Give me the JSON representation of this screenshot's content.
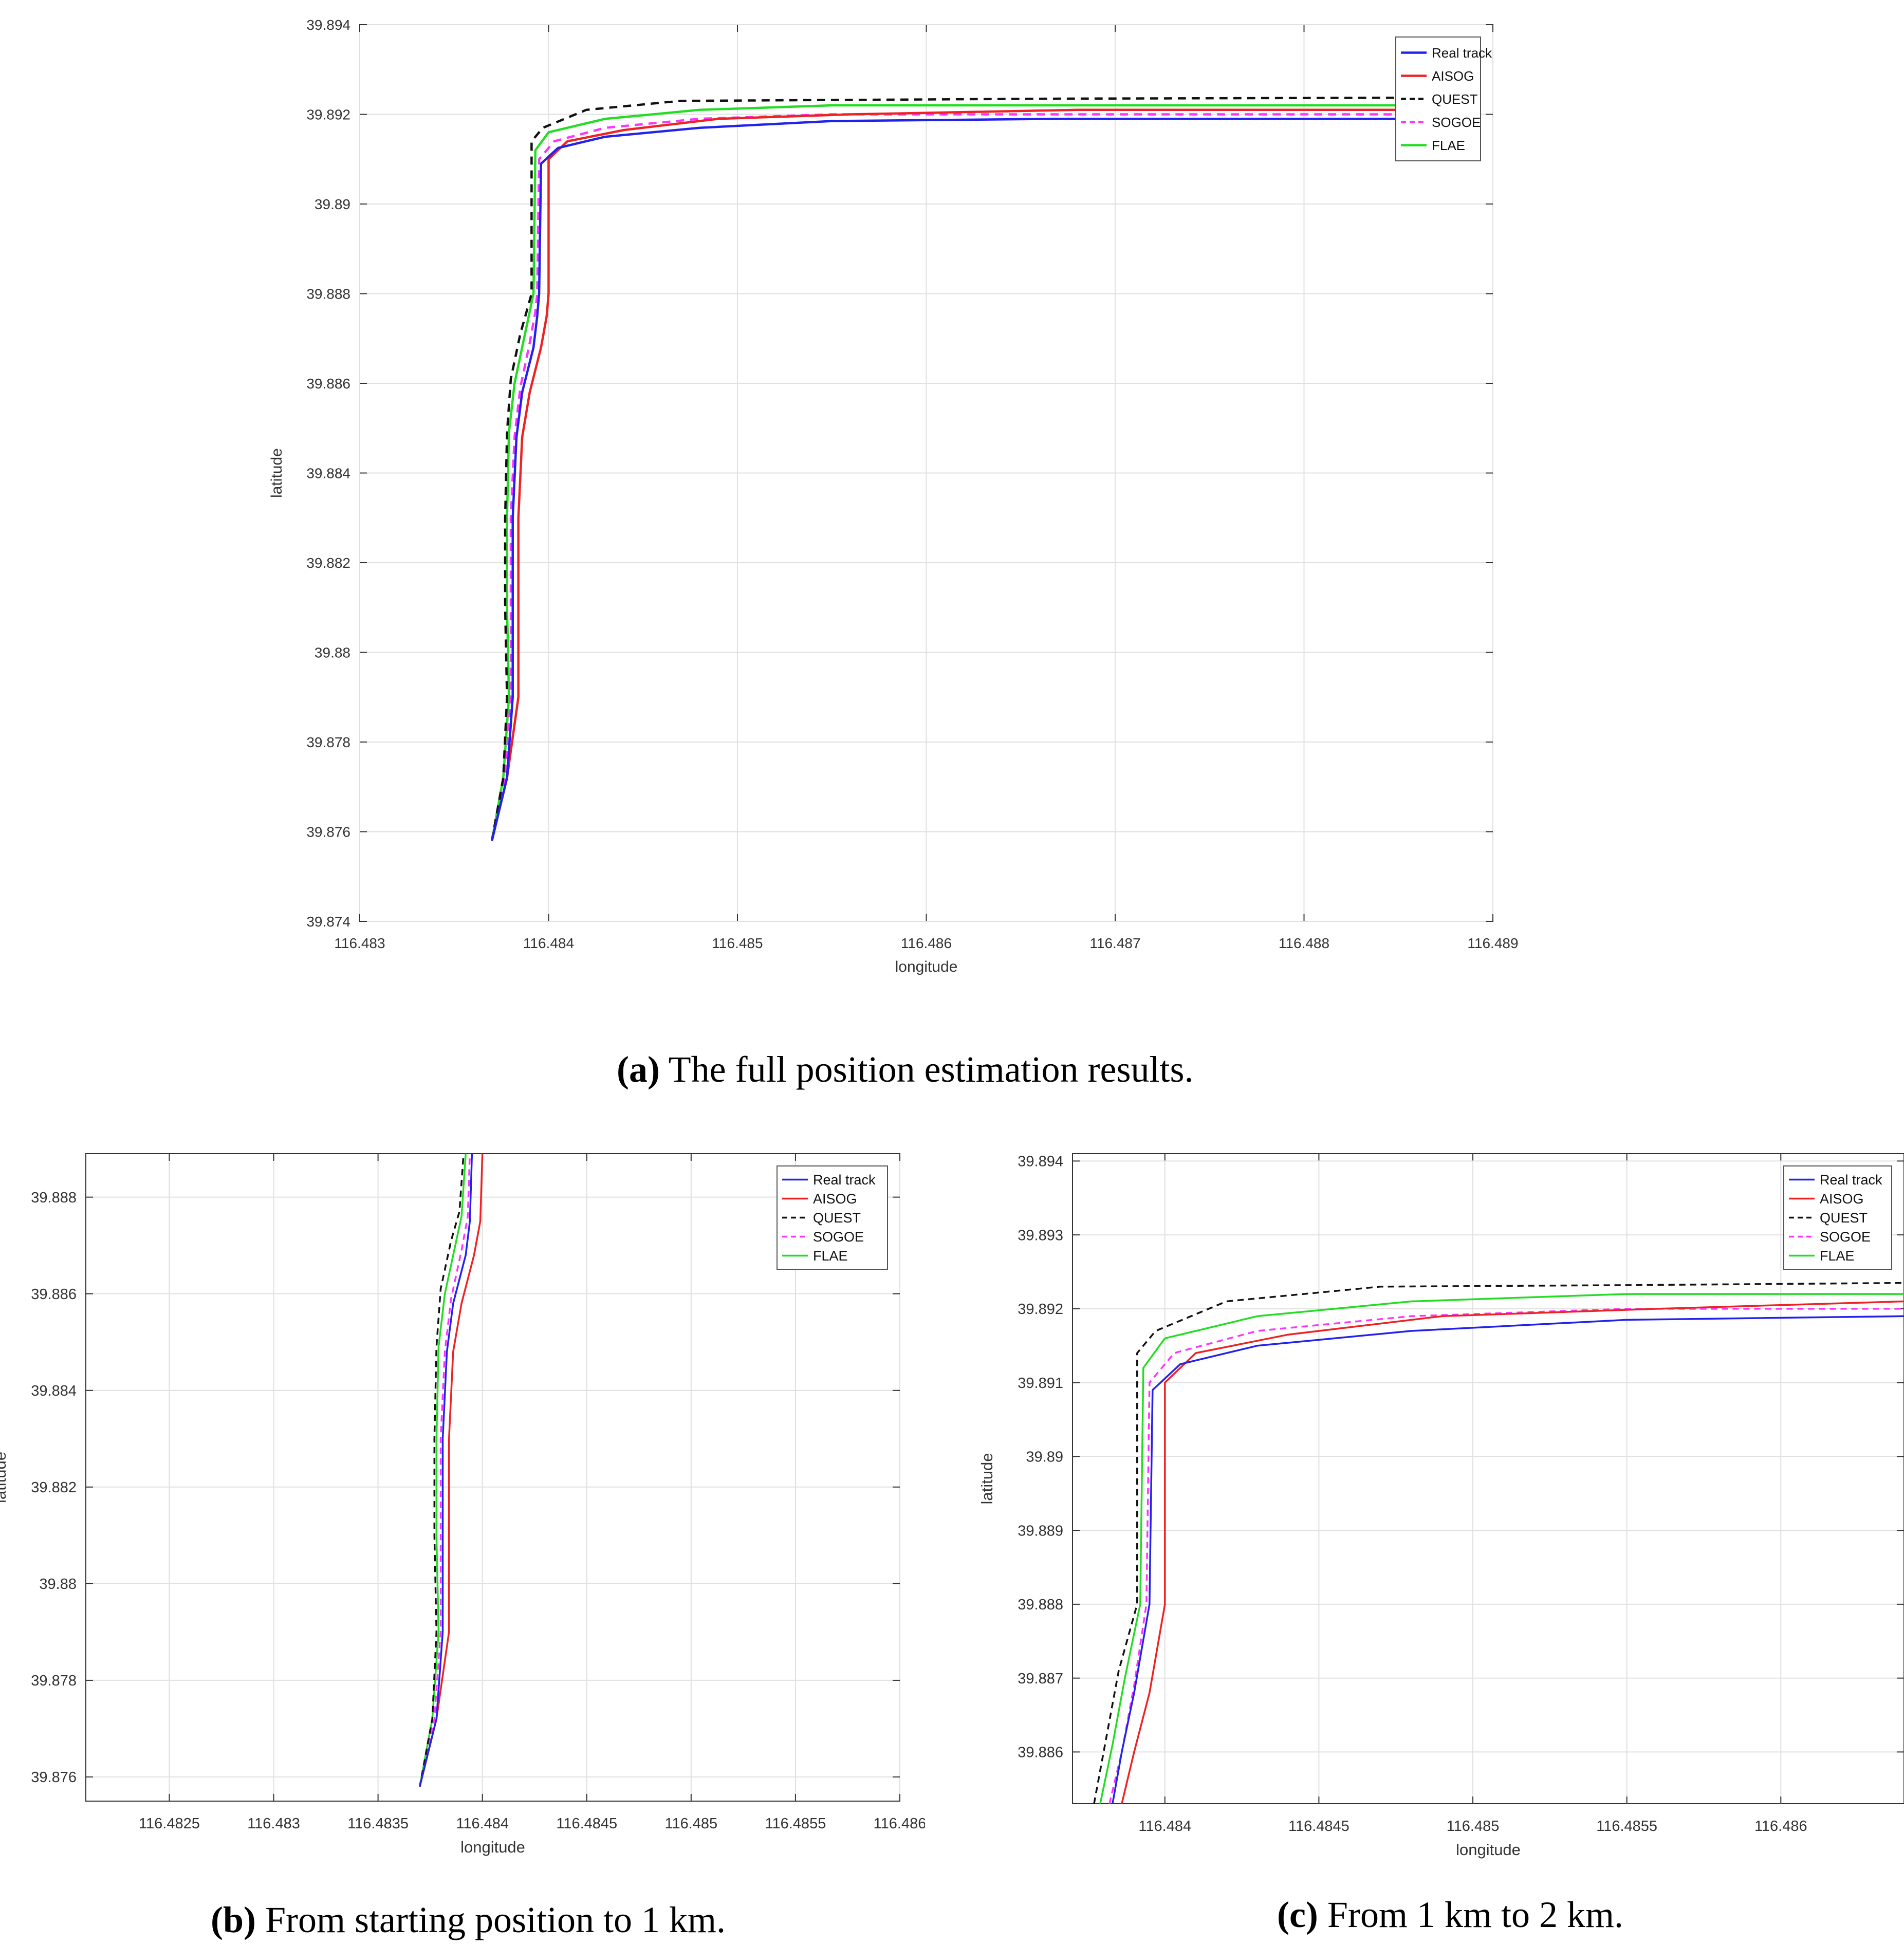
{
  "legend_entries": [
    {
      "name": "Real track",
      "color": "#2222ee",
      "dash": false
    },
    {
      "name": "AISOG",
      "color": "#ee2222",
      "dash": false
    },
    {
      "name": "QUEST",
      "color": "#111111",
      "dash": true
    },
    {
      "name": "SOGOE",
      "color": "#ff33ff",
      "dash": true
    },
    {
      "name": "FLAE",
      "color": "#22dd22",
      "dash": false
    }
  ],
  "captions": {
    "a": {
      "tag": "(a)",
      "text": " The full position estimation results."
    },
    "b": {
      "tag": "(b)",
      "text": " From starting position to 1 km."
    },
    "c": {
      "tag": "(c)",
      "text": " From 1 km to 2 km."
    }
  },
  "chart_data": [
    {
      "id": "a",
      "type": "line",
      "xlabel": "longitude",
      "ylabel": "latitude",
      "xlim": [
        116.483,
        116.489
      ],
      "ylim": [
        39.874,
        39.894
      ],
      "xticks": [
        116.483,
        116.484,
        116.485,
        116.486,
        116.487,
        116.488,
        116.489
      ],
      "xtick_labels": [
        "116.483",
        "116.484",
        "116.485",
        "116.486",
        "116.487",
        "116.488",
        "116.489"
      ],
      "yticks": [
        39.874,
        39.876,
        39.878,
        39.88,
        39.882,
        39.884,
        39.886,
        39.888,
        39.89,
        39.892,
        39.894
      ],
      "ytick_labels": [
        "39.874",
        "39.876",
        "39.878",
        "39.88",
        "39.882",
        "39.884",
        "39.886",
        "39.888",
        "39.89",
        "39.892",
        "39.894"
      ],
      "grid": true,
      "legend_position": "top-right",
      "series": [
        {
          "name": "Real track",
          "x": [
            116.4837,
            116.48378,
            116.48381,
            116.48381,
            116.48381,
            116.48383,
            116.48386,
            116.48392,
            116.48394,
            116.48395,
            116.48396,
            116.48405,
            116.4843,
            116.4848,
            116.4855,
            116.4867,
            116.4885
          ],
          "y": [
            39.8758,
            39.8772,
            39.879,
            39.881,
            39.883,
            39.8848,
            39.8858,
            39.8868,
            39.8875,
            39.888,
            39.8909,
            39.89125,
            39.8915,
            39.8917,
            39.89185,
            39.8919,
            39.8919
          ]
        },
        {
          "name": "AISOG",
          "x": [
            116.4837,
            116.48378,
            116.48384,
            116.48384,
            116.48384,
            116.48386,
            116.4839,
            116.48396,
            116.48399,
            116.484,
            116.484,
            116.4841,
            116.4844,
            116.4849,
            116.4856,
            116.4868,
            116.4885
          ],
          "y": [
            39.8758,
            39.8772,
            39.879,
            39.881,
            39.883,
            39.8848,
            39.8858,
            39.8868,
            39.8875,
            39.888,
            39.891,
            39.8914,
            39.89165,
            39.8919,
            39.892,
            39.8921,
            39.8921
          ]
        },
        {
          "name": "QUEST",
          "x": [
            116.4837,
            116.48376,
            116.48378,
            116.48377,
            116.48377,
            116.48378,
            116.4838,
            116.48385,
            116.48389,
            116.48391,
            116.48391,
            116.48397,
            116.4842,
            116.4847,
            116.4855,
            116.4867,
            116.4885
          ],
          "y": [
            39.8758,
            39.8772,
            39.879,
            39.881,
            39.883,
            39.8849,
            39.8861,
            39.8871,
            39.8877,
            39.888,
            39.8914,
            39.8917,
            39.8921,
            39.8923,
            39.89232,
            39.89235,
            39.89237
          ]
        },
        {
          "name": "SOGOE",
          "x": [
            116.4837,
            116.48377,
            116.4838,
            116.4838,
            116.4838,
            116.48382,
            116.48385,
            116.4839,
            116.48393,
            116.48394,
            116.48395,
            116.48403,
            116.4843,
            116.4848,
            116.4855,
            116.4867,
            116.4885
          ],
          "y": [
            39.8758,
            39.8772,
            39.879,
            39.881,
            39.883,
            39.8848,
            39.8859,
            39.8869,
            39.8876,
            39.888,
            39.891,
            39.8914,
            39.8917,
            39.8919,
            39.892,
            39.892,
            39.892
          ]
        },
        {
          "name": "FLAE",
          "x": [
            116.4837,
            116.48376,
            116.48379,
            116.48378,
            116.48378,
            116.48379,
            116.48382,
            116.48387,
            116.4839,
            116.48392,
            116.48393,
            116.484,
            116.4843,
            116.4848,
            116.4855,
            116.4867,
            116.4885
          ],
          "y": [
            39.8758,
            39.8772,
            39.879,
            39.881,
            39.883,
            39.8849,
            39.886,
            39.887,
            39.8876,
            39.888,
            39.8912,
            39.8916,
            39.8919,
            39.8921,
            39.8922,
            39.8922,
            39.8922
          ]
        }
      ]
    },
    {
      "id": "b",
      "type": "line",
      "xlabel": "longitude",
      "ylabel": "latitude",
      "xlim": [
        116.4821,
        116.486
      ],
      "ylim": [
        39.8755,
        39.8889
      ],
      "xticks": [
        116.4825,
        116.483,
        116.4835,
        116.484,
        116.4845,
        116.485,
        116.4855,
        116.486
      ],
      "xtick_labels": [
        "116.4825",
        "116.483",
        "116.4835",
        "116.484",
        "116.4845",
        "116.485",
        "116.4855",
        "116.486"
      ],
      "yticks": [
        39.876,
        39.878,
        39.88,
        39.882,
        39.884,
        39.886,
        39.888
      ],
      "ytick_labels": [
        "39.876",
        "39.878",
        "39.88",
        "39.882",
        "39.884",
        "39.886",
        "39.888"
      ],
      "grid": true,
      "legend_position": "top-right",
      "series": [
        {
          "name": "Real track",
          "x": [
            116.4837,
            116.48378,
            116.48381,
            116.48381,
            116.48381,
            116.48383,
            116.48386,
            116.48392,
            116.48394,
            116.48395
          ],
          "y": [
            39.8758,
            39.8772,
            39.879,
            39.881,
            39.883,
            39.8848,
            39.8858,
            39.8868,
            39.8875,
            39.8889
          ]
        },
        {
          "name": "AISOG",
          "x": [
            116.4837,
            116.48378,
            116.48384,
            116.48384,
            116.48384,
            116.48386,
            116.4839,
            116.48396,
            116.48399,
            116.484
          ],
          "y": [
            39.8758,
            39.8772,
            39.879,
            39.881,
            39.883,
            39.8848,
            39.8858,
            39.8868,
            39.8875,
            39.8889
          ]
        },
        {
          "name": "QUEST",
          "x": [
            116.4837,
            116.48376,
            116.48378,
            116.48377,
            116.48377,
            116.48378,
            116.4838,
            116.48385,
            116.48389,
            116.48391
          ],
          "y": [
            39.8758,
            39.8772,
            39.879,
            39.881,
            39.883,
            39.8849,
            39.8861,
            39.8871,
            39.8877,
            39.8889
          ]
        },
        {
          "name": "SOGOE",
          "x": [
            116.4837,
            116.48377,
            116.4838,
            116.4838,
            116.4838,
            116.48382,
            116.48385,
            116.4839,
            116.48393,
            116.48394
          ],
          "y": [
            39.8758,
            39.8772,
            39.879,
            39.881,
            39.883,
            39.8848,
            39.8859,
            39.8869,
            39.8876,
            39.8889
          ]
        },
        {
          "name": "FLAE",
          "x": [
            116.4837,
            116.48376,
            116.48379,
            116.48378,
            116.48378,
            116.48379,
            116.48382,
            116.48387,
            116.4839,
            116.48392
          ],
          "y": [
            39.8758,
            39.8772,
            39.879,
            39.881,
            39.883,
            39.8849,
            39.886,
            39.887,
            39.8876,
            39.8889
          ]
        }
      ]
    },
    {
      "id": "c",
      "type": "line",
      "xlabel": "longitude",
      "ylabel": "latitude",
      "xlim": [
        116.4837,
        116.4864
      ],
      "ylim": [
        39.8853,
        39.8941
      ],
      "xticks": [
        116.484,
        116.4845,
        116.485,
        116.4855,
        116.486
      ],
      "xtick_labels": [
        "116.484",
        "116.4845",
        "116.485",
        "116.4855",
        "116.486"
      ],
      "yticks": [
        39.886,
        39.887,
        39.888,
        39.889,
        39.89,
        39.891,
        39.892,
        39.893,
        39.894
      ],
      "ytick_labels": [
        "39.886",
        "39.887",
        "39.888",
        "39.889",
        "39.89",
        "39.891",
        "39.892",
        "39.893",
        "39.894"
      ],
      "grid": true,
      "legend_position": "top-right",
      "series": [
        {
          "name": "Real track",
          "x": [
            116.48383,
            116.48386,
            116.4839,
            116.48395,
            116.48396,
            116.48405,
            116.4843,
            116.4848,
            116.4855,
            116.4864
          ],
          "y": [
            39.8853,
            39.886,
            39.8868,
            39.888,
            39.8909,
            39.89125,
            39.8915,
            39.8917,
            39.89185,
            39.8919
          ]
        },
        {
          "name": "AISOG",
          "x": [
            116.48386,
            116.4839,
            116.48395,
            116.484,
            116.484,
            116.4841,
            116.4844,
            116.4849,
            116.4856,
            116.4864
          ],
          "y": [
            39.8853,
            39.886,
            39.8868,
            39.888,
            39.891,
            39.8914,
            39.89165,
            39.8919,
            39.892,
            39.8921
          ]
        },
        {
          "name": "QUEST",
          "x": [
            116.48377,
            116.48381,
            116.48385,
            116.48391,
            116.48391,
            116.48397,
            116.4842,
            116.4847,
            116.4855,
            116.4864
          ],
          "y": [
            39.8853,
            39.8862,
            39.8871,
            39.888,
            39.8914,
            39.8917,
            39.8921,
            39.8923,
            39.89232,
            39.89235
          ]
        },
        {
          "name": "SOGOE",
          "x": [
            116.48382,
            116.48386,
            116.4839,
            116.48394,
            116.48395,
            116.48403,
            116.4843,
            116.4848,
            116.4855,
            116.4864
          ],
          "y": [
            39.8853,
            39.886,
            39.8869,
            39.888,
            39.891,
            39.8914,
            39.8917,
            39.8919,
            39.892,
            39.892
          ]
        },
        {
          "name": "FLAE",
          "x": [
            116.48379,
            116.48383,
            116.48387,
            116.48392,
            116.48393,
            116.484,
            116.4843,
            116.4848,
            116.4855,
            116.4864
          ],
          "y": [
            39.8853,
            39.8861,
            39.887,
            39.888,
            39.8912,
            39.8916,
            39.8919,
            39.8921,
            39.8922,
            39.8922
          ]
        }
      ]
    }
  ]
}
